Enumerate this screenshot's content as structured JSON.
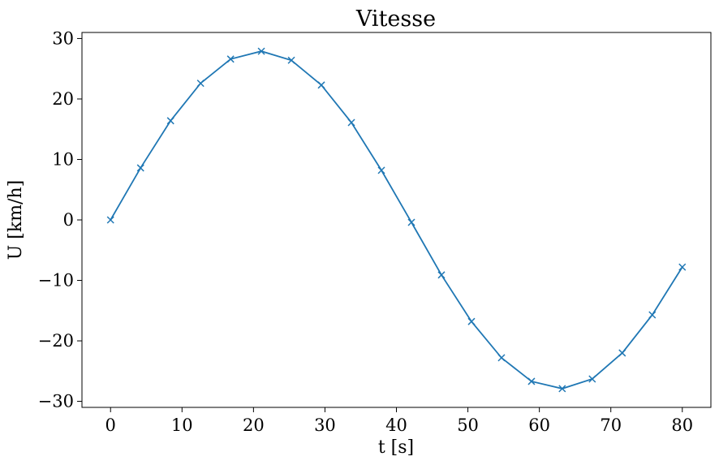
{
  "chart_data": {
    "type": "line",
    "title": "Vitesse",
    "xlabel": "t [s]",
    "ylabel": "U [km/h]",
    "xlim": [
      -4,
      84
    ],
    "ylim": [
      -31,
      31
    ],
    "xticks": [
      0,
      10,
      20,
      30,
      40,
      50,
      60,
      70,
      80
    ],
    "yticks": [
      -30,
      -20,
      -10,
      0,
      10,
      20,
      30
    ],
    "xtick_labels": [
      "0",
      "10",
      "20",
      "30",
      "40",
      "50",
      "60",
      "70",
      "80"
    ],
    "ytick_labels": [
      "−30",
      "−20",
      "−10",
      "0",
      "10",
      "20",
      "30"
    ],
    "grid": false,
    "marker": "x",
    "color": "#1f77b4",
    "series": [
      {
        "x": [
          0,
          4.2,
          8.4,
          12.6,
          16.8,
          21.1,
          25.3,
          29.5,
          33.7,
          37.9,
          42.1,
          46.3,
          50.5,
          54.7,
          58.9,
          63.2,
          67.4,
          71.6,
          75.8,
          80
        ],
        "y": [
          0,
          8.6,
          16.4,
          22.6,
          26.6,
          27.9,
          26.4,
          22.3,
          16.1,
          8.2,
          -0.4,
          -9.1,
          -16.8,
          -22.8,
          -26.7,
          -27.9,
          -26.3,
          -22.0,
          -15.7,
          -7.8
        ]
      }
    ]
  }
}
